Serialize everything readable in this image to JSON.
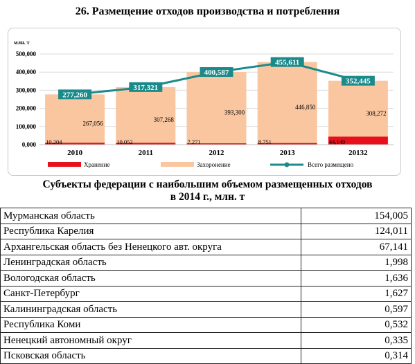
{
  "title": "26. Размещение отходов производства и потребления",
  "chart_data": {
    "type": "bar",
    "unit_label": "млн. т",
    "categories": [
      "2010",
      "2011",
      "2012",
      "2013",
      "20132"
    ],
    "ylim": [
      0,
      500000
    ],
    "yticks": [
      "0,000",
      "100,000",
      "200,000",
      "300,000",
      "400,000",
      "500,000"
    ],
    "series": [
      {
        "name": "Хранение",
        "type": "bar",
        "color": "#e8101a",
        "values": [
          10204,
          10052,
          7271,
          8751,
          44149
        ],
        "labels": [
          "10,204",
          "10,052",
          "7,271",
          "8,751",
          "44,149"
        ]
      },
      {
        "name": "Захоронение",
        "type": "bar",
        "color": "#f9c6a0",
        "values": [
          267056,
          307268,
          393300,
          446850,
          308272
        ],
        "labels": [
          "267,056",
          "307,268",
          "393,300",
          "446,850",
          "308,272"
        ]
      },
      {
        "name": "Всего размещено",
        "type": "line",
        "color": "#1a8a8a",
        "values": [
          277260,
          317321,
          400587,
          455611,
          352445
        ],
        "labels": [
          "277,260",
          "317,321",
          "400,587",
          "455,611",
          "352,445"
        ]
      }
    ]
  },
  "table": {
    "title_line1": "Субъекты федерации с наибольшим объемом размещенных отходов",
    "title_line2": "в 2014 г., млн. т",
    "rows": [
      {
        "name": "Мурманская область",
        "value": "154,005"
      },
      {
        "name": "Республика Карелия",
        "value": "124,011"
      },
      {
        "name": "Архангельская область без Ненецкого авт. округа",
        "value": "67,141"
      },
      {
        "name": "Ленинградская область",
        "value": "1,998"
      },
      {
        "name": "Вологодская область",
        "value": "1,636"
      },
      {
        "name": "Санкт-Петербург",
        "value": "1,627"
      },
      {
        "name": "Калининградская область",
        "value": "0,597"
      },
      {
        "name": "Республика Коми",
        "value": "0,532"
      },
      {
        "name": "Ненецкий автономный округ",
        "value": "0,335"
      },
      {
        "name": "Псковская область",
        "value": "0,314"
      }
    ]
  }
}
